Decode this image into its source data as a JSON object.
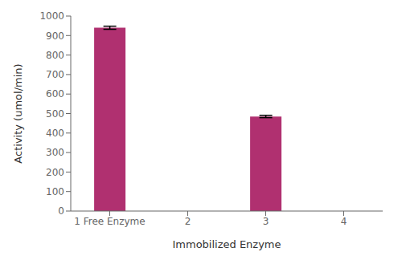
{
  "chart_data": {
    "type": "bar",
    "categories": [
      "1 Free Enzyme",
      "2",
      "3",
      "4"
    ],
    "values": [
      940,
      null,
      485,
      null
    ],
    "errors": [
      8,
      null,
      6,
      null
    ],
    "color": "#b03070",
    "xlabel": "Immobilized Enzyme",
    "ylabel": "Activity (umol/min)",
    "ylim": [
      0,
      1000
    ],
    "yticks": [
      0,
      100,
      200,
      300,
      400,
      500,
      600,
      700,
      800,
      900,
      1000
    ],
    "grid": false
  }
}
